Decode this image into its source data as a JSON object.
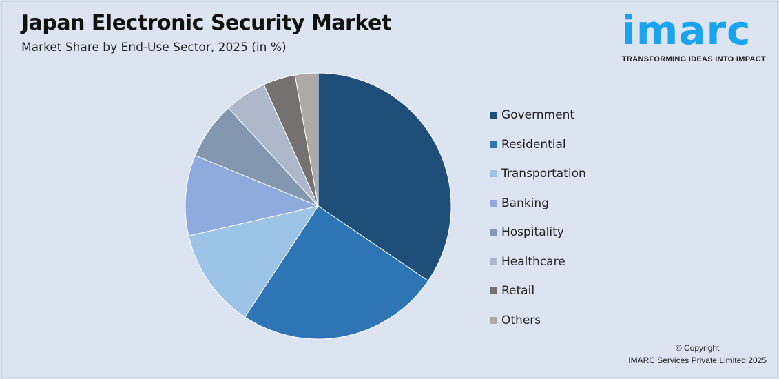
{
  "title": "Japan Electronic Security Market",
  "subtitle": "Market Share by End-Use Sector, 2025 (in %)",
  "logo": {
    "word": "imarc",
    "tagline": "TRANSFORMING IDEAS INTO IMPACT"
  },
  "copyright": {
    "line1": "© Copyright",
    "line2": "IMARC Services Private Limited 2025"
  },
  "chart_data": {
    "type": "pie",
    "title": "Japan Electronic Security Market",
    "subtitle": "Market Share by End-Use Sector, 2025 (in %)",
    "legend_position": "right",
    "start": "12 o'clock, clockwise",
    "categories": [
      "Government",
      "Residential",
      "Transportation",
      "Banking",
      "Hospitality",
      "Healthcare",
      "Retail",
      "Others"
    ],
    "values": [
      34.5,
      24.8,
      12.1,
      9.8,
      7.0,
      5.1,
      3.9,
      2.8
    ],
    "colors": [
      "#1f4e79",
      "#2e75b6",
      "#9dc3e6",
      "#8faadc",
      "#8497b0",
      "#adb9ca",
      "#767171",
      "#aeaaaa"
    ]
  }
}
